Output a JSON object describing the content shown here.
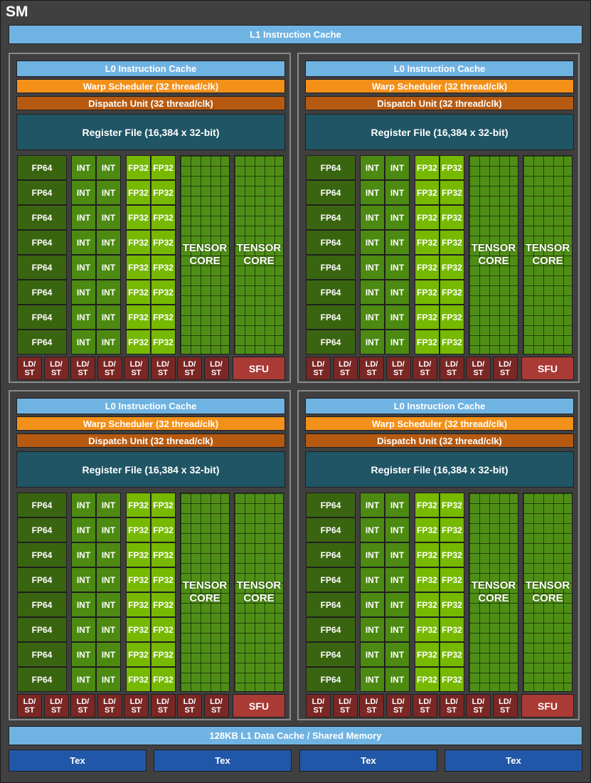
{
  "sm": {
    "title": "SM",
    "l1_instruction_cache": "L1 Instruction Cache",
    "l1_data_cache": "128KB L1 Data Cache / Shared Memory",
    "tex_units": [
      "Tex",
      "Tex",
      "Tex",
      "Tex"
    ]
  },
  "partition": {
    "l0_cache": "L0 Instruction Cache",
    "warp_scheduler": "Warp Scheduler (32 thread/clk)",
    "dispatch_unit": "Dispatch Unit (32 thread/clk)",
    "register_file": "Register File (16,384 x 32-bit)",
    "fp64": "FP64",
    "int": "INT",
    "fp32": "FP32",
    "tensor_line1": "TENSOR",
    "tensor_line2": "CORE",
    "ldst_line1": "LD/",
    "ldst_line2": "ST",
    "sfu": "SFU",
    "rows": 8,
    "ldst_units": 8
  },
  "partition_count": 4,
  "colors": {
    "background": "#404040",
    "cache": "#6fb3e3",
    "warp_scheduler": "#f39019",
    "dispatch_unit": "#b75a11",
    "register_file": "#1f5564",
    "fp64": "#3a6510",
    "int": "#4c8a12",
    "fp32": "#76b900",
    "tensor_core": "#4f8e16",
    "ldst": "#7a2725",
    "sfu": "#a93a35",
    "tex": "#2157a8"
  }
}
